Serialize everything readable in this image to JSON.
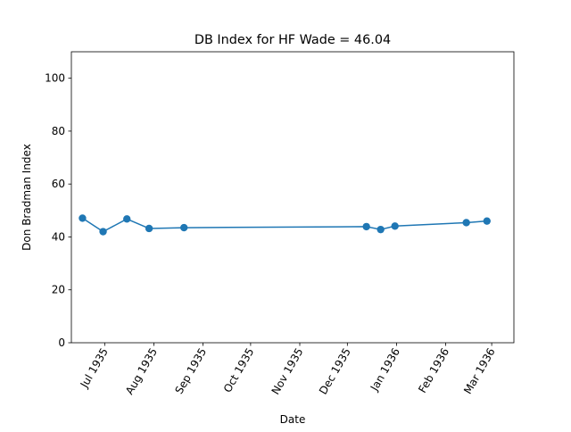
{
  "chart_data": {
    "type": "line",
    "title": "DB Index for HF Wade = 46.04",
    "xlabel": "Date",
    "ylabel": "Don Bradman Index",
    "xlim": [
      "1935-06-10",
      "1936-03-15"
    ],
    "ylim": [
      0,
      110
    ],
    "grid": false,
    "x_ticks": [
      {
        "date": "1935-07-01",
        "label": "Jul 1935"
      },
      {
        "date": "1935-08-01",
        "label": "Aug 1935"
      },
      {
        "date": "1935-09-01",
        "label": "Sep 1935"
      },
      {
        "date": "1935-10-01",
        "label": "Oct 1935"
      },
      {
        "date": "1935-11-01",
        "label": "Nov 1935"
      },
      {
        "date": "1935-12-01",
        "label": "Dec 1935"
      },
      {
        "date": "1936-01-01",
        "label": "Jan 1936"
      },
      {
        "date": "1936-02-01",
        "label": "Feb 1936"
      },
      {
        "date": "1936-03-01",
        "label": "Mar 1936"
      }
    ],
    "y_ticks": [
      0,
      20,
      40,
      60,
      80,
      100
    ],
    "series": [
      {
        "name": "",
        "color": "#1f77b4",
        "points": [
          {
            "x": "1935-06-17",
            "y": 47.1
          },
          {
            "x": "1935-06-30",
            "y": 42.0
          },
          {
            "x": "1935-07-15",
            "y": 46.8
          },
          {
            "x": "1935-07-29",
            "y": 43.2
          },
          {
            "x": "1935-08-20",
            "y": 43.5
          },
          {
            "x": "1935-12-13",
            "y": 43.9
          },
          {
            "x": "1935-12-22",
            "y": 42.8
          },
          {
            "x": "1935-12-31",
            "y": 44.1
          },
          {
            "x": "1936-02-14",
            "y": 45.4
          },
          {
            "x": "1936-02-27",
            "y": 46.0
          }
        ]
      }
    ]
  }
}
